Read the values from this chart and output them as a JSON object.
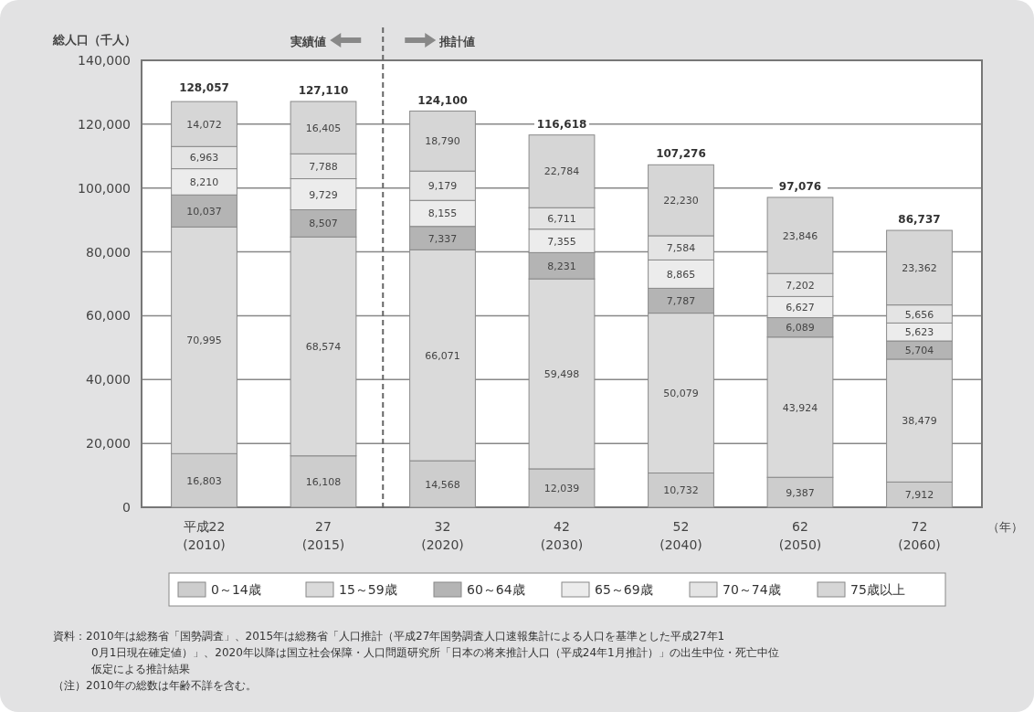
{
  "chart_data": {
    "type": "bar",
    "stacked": true,
    "ylabel": "総人口（千人）",
    "xlabel": "（年）",
    "categories": [
      "平成22\n(2010)",
      "27\n(2015)",
      "32\n(2020)",
      "42\n(2030)",
      "52\n(2040)",
      "62\n(2050)",
      "72\n(2060)"
    ],
    "series": [
      {
        "name": "0～14歳",
        "color": "#cdcdcd",
        "values": [
          16803,
          16108,
          14568,
          12039,
          10732,
          9387,
          7912
        ],
        "value_labels": [
          "16,803",
          "16,108",
          "14,568",
          "12,039",
          "10,732",
          "9,387",
          "7,912"
        ]
      },
      {
        "name": "15～59歳",
        "color": "#dadada",
        "values": [
          70995,
          68574,
          66071,
          59498,
          50079,
          43924,
          38479
        ],
        "value_labels": [
          "70,995",
          "68,574",
          "66,071",
          "59,498",
          "50,079",
          "43,924",
          "38,479"
        ]
      },
      {
        "name": "60～64歳",
        "color": "#b4b4b4",
        "values": [
          10037,
          8507,
          7337,
          8231,
          7787,
          6089,
          5704
        ],
        "value_labels": [
          "10,037",
          "8,507",
          "7,337",
          "8,231",
          "7,787",
          "6,089",
          "5,704"
        ]
      },
      {
        "name": "65～69歳",
        "color": "#ececec",
        "values": [
          8210,
          9729,
          8155,
          7355,
          8865,
          6627,
          5623
        ],
        "value_labels": [
          "8,210",
          "9,729",
          "8,155",
          "7,355",
          "8,865",
          "6,627",
          "5,623"
        ]
      },
      {
        "name": "70～74歳",
        "color": "#e4e4e4",
        "values": [
          6963,
          7788,
          9179,
          6711,
          7584,
          7202,
          5656
        ],
        "value_labels": [
          "6,963",
          "7,788",
          "9,179",
          "6,711",
          "7,584",
          "7,202",
          "5,656"
        ]
      },
      {
        "name": "75歳以上",
        "color": "#d6d6d6",
        "values": [
          14072,
          16405,
          18790,
          22784,
          22230,
          23846,
          23362
        ],
        "value_labels": [
          "14,072",
          "16,405",
          "18,790",
          "22,784",
          "22,230",
          "23,846",
          "23,362"
        ]
      }
    ],
    "ylim": [
      0,
      140000
    ],
    "yticks": [
      {
        "value": 0,
        "label": "0"
      },
      {
        "value": 20000,
        "label": "20,000"
      },
      {
        "value": 40000,
        "label": "40,000"
      },
      {
        "value": 60000,
        "label": "60,000"
      },
      {
        "value": 80000,
        "label": "80,000"
      },
      {
        "value": 100000,
        "label": "100,000"
      },
      {
        "value": 120000,
        "label": "120,000"
      },
      {
        "value": 140000,
        "label": "140,000"
      }
    ],
    "grid": "y",
    "legend": "bottom",
    "annotations": [
      {
        "text": "128,057",
        "x": "平成22\n(2010)",
        "y": 128057
      },
      {
        "text": "127,110",
        "x": "27\n(2015)",
        "y": 127110
      },
      {
        "text": "124,100",
        "x": "32\n(2020)",
        "y": 124100
      },
      {
        "text": "116,618",
        "x": "42\n(2030)",
        "y": 116618
      },
      {
        "text": "107,276",
        "x": "52\n(2040)",
        "y": 107276
      },
      {
        "text": "97,076",
        "x": "62\n(2050)",
        "y": 97076
      },
      {
        "text": "86,737",
        "x": "72\n(2060)",
        "y": 86737
      },
      "実績値",
      "推計値",
      "資料：2010年は総務省「国勢調査」、2015年は総務省「人口推計（平成27年国勢調査人口速報集計による人口を基準とした平成27年10月1日現在確定値）」、2020年以降は国立社会保障・人口問題研究所「日本の将来推計人口（平成24年1月推計）」の出生中位・死亡中位仮定による推計結果",
      "（注）2010年の総数は年齢不詳を含む。"
    ]
  }
}
